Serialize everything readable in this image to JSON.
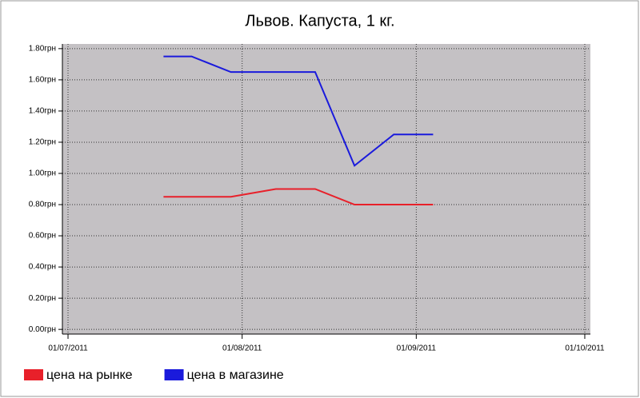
{
  "chart_data": {
    "type": "line",
    "title": "Львов. Капуста, 1 кг.",
    "x": [
      "2011-07-18",
      "2011-07-23",
      "2011-07-30",
      "2011-08-07",
      "2011-08-14",
      "2011-08-21",
      "2011-08-28",
      "2011-09-04"
    ],
    "series": [
      {
        "name": "цена на рынке",
        "color": "#e8202a",
        "values": [
          0.85,
          0.85,
          0.85,
          0.9,
          0.9,
          0.8,
          0.8,
          0.8
        ]
      },
      {
        "name": "цена в магазине",
        "color": "#1a1adc",
        "values": [
          1.75,
          1.75,
          1.65,
          1.65,
          1.65,
          1.05,
          1.25,
          1.25
        ]
      }
    ],
    "xlim": [
      "2011-06-30",
      "2011-10-02"
    ],
    "xticks": [
      {
        "value": "2011-07-01",
        "label": "01/07/2011"
      },
      {
        "value": "2011-08-01",
        "label": "01/08/2011"
      },
      {
        "value": "2011-09-01",
        "label": "01/09/2011"
      },
      {
        "value": "2011-10-01",
        "label": "01/10/2011"
      }
    ],
    "ylim": [
      -0.03,
      1.83
    ],
    "yticks": [
      {
        "value": 0,
        "label": "0.00грн"
      },
      {
        "value": 0.2,
        "label": "0.20грн"
      },
      {
        "value": 0.4,
        "label": "0.40грн"
      },
      {
        "value": 0.6,
        "label": "0.60грн"
      },
      {
        "value": 0.8,
        "label": "0.80грн"
      },
      {
        "value": 1.0,
        "label": "1.00грн"
      },
      {
        "value": 1.2,
        "label": "1.20грн"
      },
      {
        "value": 1.4,
        "label": "1.40грн"
      },
      {
        "value": 1.6,
        "label": "1.60грн"
      },
      {
        "value": 1.8,
        "label": "1.80грн"
      }
    ],
    "grid": true,
    "legend": "bottom"
  }
}
